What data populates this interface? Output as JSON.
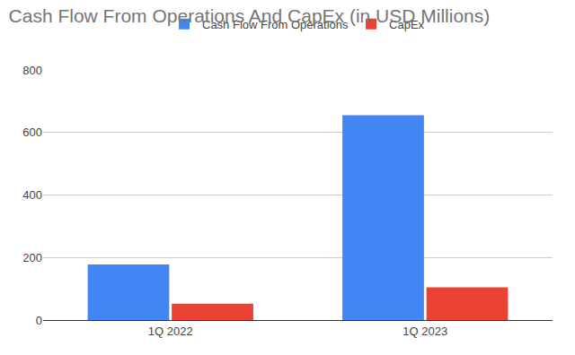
{
  "chart_data": {
    "type": "bar",
    "title": "Cash Flow From Operations And CapEx (in USD Millions)",
    "categories": [
      "1Q 2022",
      "1Q 2023"
    ],
    "series": [
      {
        "name": "Cash Flow From Operations",
        "color": "#4285f4",
        "values": [
          178,
          655
        ]
      },
      {
        "name": "CapEx",
        "color": "#ea4335",
        "values": [
          52,
          105
        ]
      }
    ],
    "ylim": [
      0,
      800
    ],
    "yticks": [
      0,
      200,
      400,
      600,
      800
    ],
    "grid": true,
    "legend": "top"
  }
}
